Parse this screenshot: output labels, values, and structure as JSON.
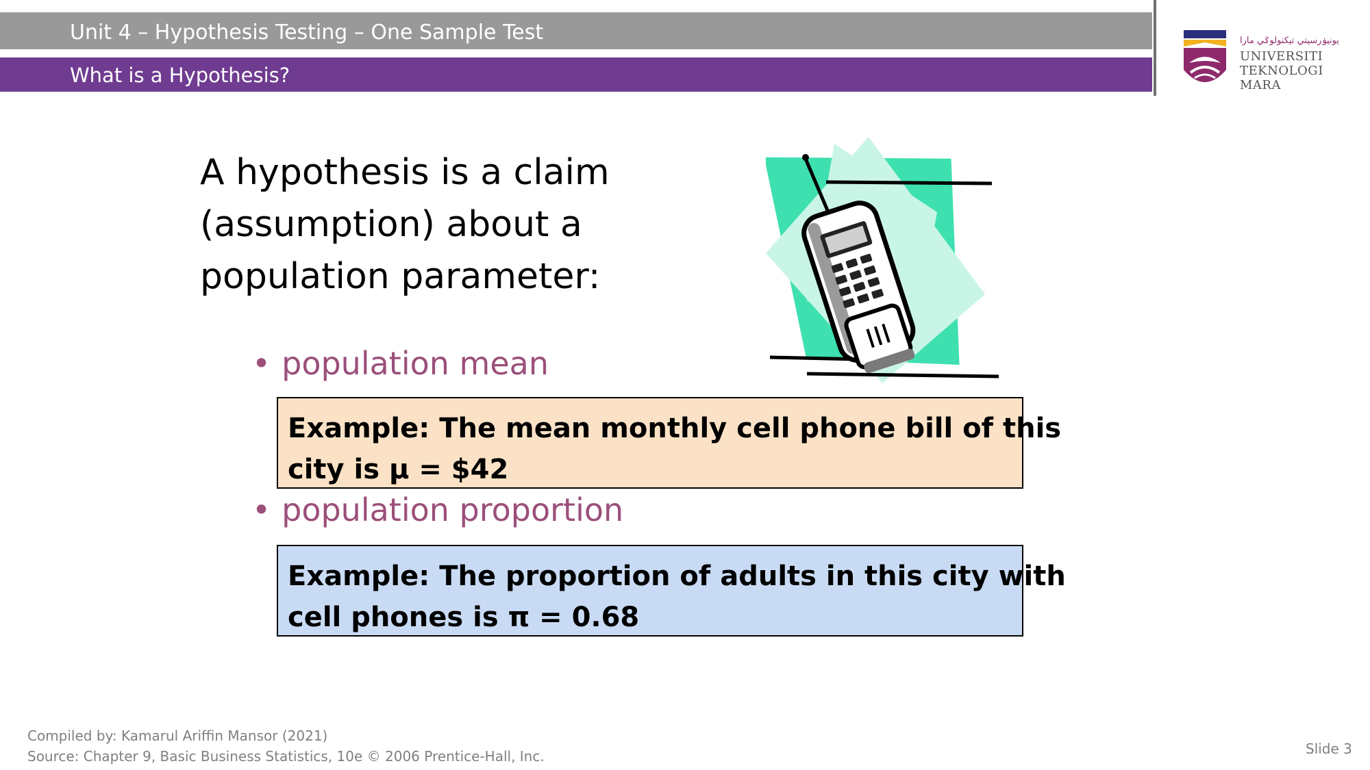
{
  "header": {
    "unit_title": "Unit 4 – Hypothesis Testing – One Sample Test",
    "topic_title": "What is a Hypothesis?"
  },
  "logo": {
    "name_line1": "UNIVERSITI",
    "name_line2": "TEKNOLOGI",
    "name_line3": "MARA",
    "jawi_text": "يونيۏرسيتي تيكنولوݢي مارا",
    "icon": "university-crest-icon"
  },
  "main": {
    "title": "A hypothesis is a claim (assumption) about a population parameter:",
    "illustration": "cell-phone-clipart",
    "bullets": [
      {
        "label": "population mean",
        "example_line1": "Example:  The mean monthly cell phone bill of this",
        "example_line2": "city is  μ = $42"
      },
      {
        "label": "population proportion",
        "example_line1": "Example:  The proportion of adults in this city with",
        "example_line2": "cell phones is  π = 0.68"
      }
    ]
  },
  "footer": {
    "compiled_by": "Compiled by: Kamarul Ariffin Mansor (2021)",
    "source": "Source: Chapter 9, Basic Business Statistics, 10e © 2006 Prentice-Hall, Inc.",
    "slide_number": "Slide 3"
  },
  "colors": {
    "header_gray": "#999999",
    "header_purple": "#6f3c91",
    "bullet_text": "#9b4f7a",
    "box_1_fill": "#fbe2c6",
    "box_2_fill": "#c9dbf4"
  }
}
